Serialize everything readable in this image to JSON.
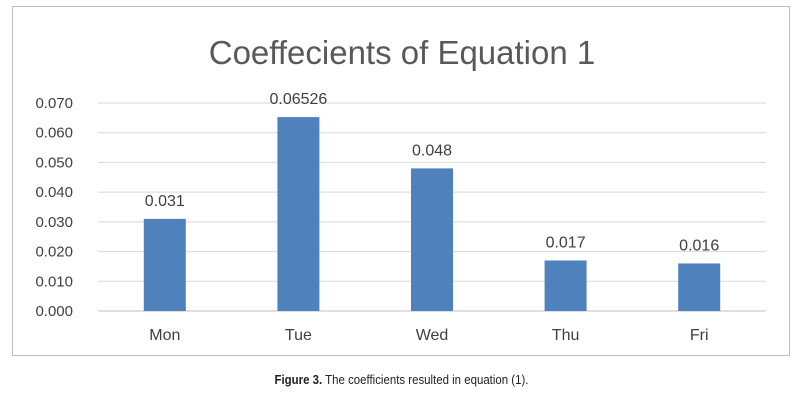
{
  "chart_data": {
    "type": "bar",
    "title": "Coeffecients of Equation 1",
    "categories": [
      "Mon",
      "Tue",
      "Wed",
      "Thu",
      "Fri"
    ],
    "values": [
      0.031,
      0.06526,
      0.048,
      0.017,
      0.016
    ],
    "data_labels": [
      "0.031",
      "0.06526",
      "0.048",
      "0.017",
      "0.016"
    ],
    "y_ticks": [
      "0.000",
      "0.010",
      "0.020",
      "0.030",
      "0.040",
      "0.050",
      "0.060",
      "0.070"
    ],
    "ylim": [
      0,
      0.07
    ],
    "xlabel": "",
    "ylabel": "",
    "grid": true,
    "legend": "none",
    "bar_color": "#4f81bd"
  },
  "caption": {
    "label": "Figure 3.",
    "text": " The coefficients resulted in equation (1)."
  }
}
